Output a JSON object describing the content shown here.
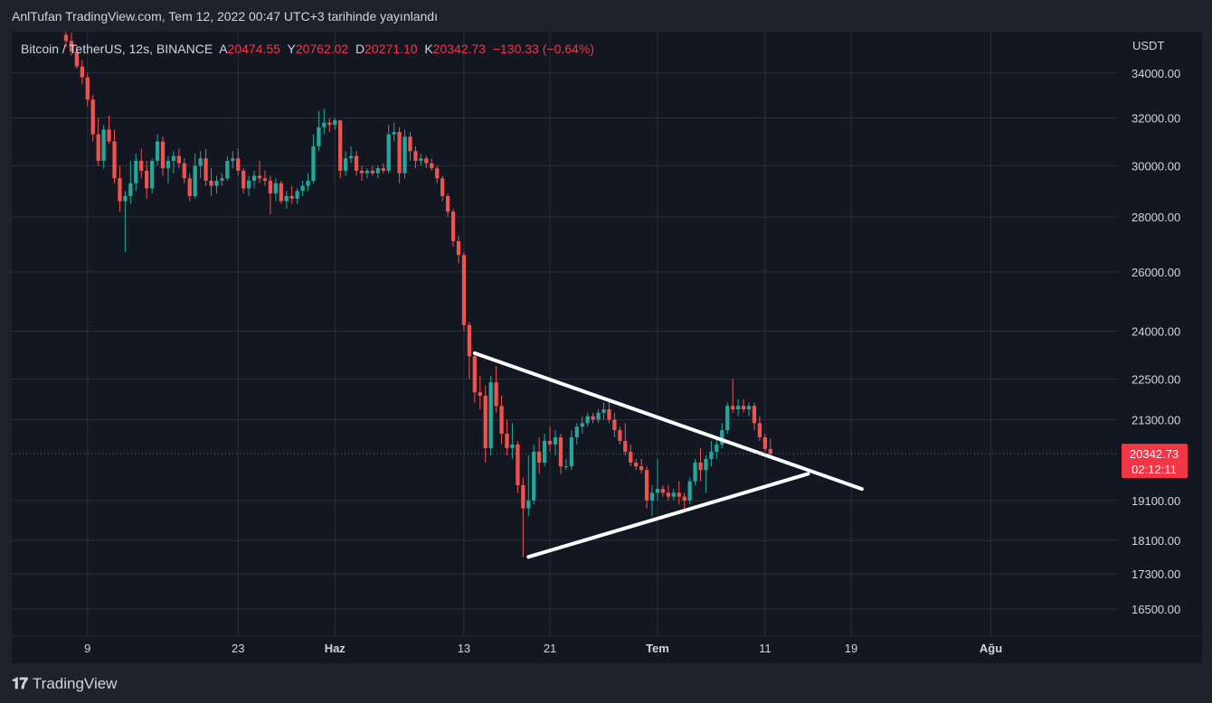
{
  "header": {
    "text": "AnlTufan TradingView.com, Tem 12, 2022 00:47 UTC+3 tarihinde yayınlandı"
  },
  "legend": {
    "symbol": "Bitcoin / TetherUS, 12s, BINANCE",
    "open_label": "A",
    "open": "20474.55",
    "high_label": "Y",
    "high": "20762.02",
    "low_label": "D",
    "low": "20271.10",
    "close_label": "K",
    "close": "20342.73",
    "change": "−130.33 (−0.64%)"
  },
  "footer": {
    "brand": "TradingView"
  },
  "colors": {
    "up": "#26a69a",
    "down": "#ef5350",
    "bg": "#131722",
    "grid": "#2a2e39",
    "text": "#d1d4dc",
    "price_tag": "#f23645"
  },
  "chart_data": {
    "type": "candlestick",
    "interval": "12h",
    "currency": "USDT",
    "log_scale": true,
    "grid": true,
    "y_ticks": [
      "34000.00",
      "32000.00",
      "30000.00",
      "28000.00",
      "26000.00",
      "24000.00",
      "22500.00",
      "21300.00",
      "19100.00",
      "18100.00",
      "17300.00",
      "16500.00"
    ],
    "x_ticks": [
      {
        "label": "9",
        "date": "2022-05-09"
      },
      {
        "label": "23",
        "date": "2022-05-23"
      },
      {
        "label": "Haz",
        "date": "2022-06-01"
      },
      {
        "label": "13",
        "date": "2022-06-13"
      },
      {
        "label": "21",
        "date": "2022-06-21"
      },
      {
        "label": "Tem",
        "date": "2022-07-01"
      },
      {
        "label": "11",
        "date": "2022-07-11"
      },
      {
        "label": "19",
        "date": "2022-07-19"
      },
      {
        "label": "Ağu",
        "date": "2022-08-01"
      }
    ],
    "x_range": [
      "2022-05-07",
      "2022-08-06"
    ],
    "y_range": [
      16200,
      35300
    ],
    "last_price": {
      "value": "20342.73",
      "countdown": "02:12:11"
    },
    "trendlines": [
      {
        "from": {
          "date": "2022-06-14",
          "price": 23300
        },
        "to": {
          "date": "2022-07-20",
          "price": 19400
        }
      },
      {
        "from": {
          "date": "2022-06-19",
          "price": 17700
        },
        "to": {
          "date": "2022-07-15",
          "price": 19800
        }
      }
    ],
    "candles": [
      {
        "date": "2022-05-07",
        "o": 35800,
        "h": 36100,
        "l": 35200,
        "c": 35500
      },
      {
        "date": "2022-05-07 12:00",
        "o": 35500,
        "h": 35900,
        "l": 34800,
        "c": 35000
      },
      {
        "date": "2022-05-08",
        "o": 35000,
        "h": 35300,
        "l": 34200,
        "c": 34300
      },
      {
        "date": "2022-05-08 12:00",
        "o": 34300,
        "h": 34600,
        "l": 33500,
        "c": 33800
      },
      {
        "date": "2022-05-09",
        "o": 33800,
        "h": 34000,
        "l": 32500,
        "c": 32800
      },
      {
        "date": "2022-05-09 12:00",
        "o": 32800,
        "h": 33000,
        "l": 31000,
        "c": 31300
      },
      {
        "date": "2022-05-10",
        "o": 31300,
        "h": 32000,
        "l": 30000,
        "c": 30200
      },
      {
        "date": "2022-05-10 12:00",
        "o": 30200,
        "h": 31700,
        "l": 29900,
        "c": 31500
      },
      {
        "date": "2022-05-11",
        "o": 31500,
        "h": 32100,
        "l": 30900,
        "c": 31000
      },
      {
        "date": "2022-05-11 12:00",
        "o": 31000,
        "h": 31500,
        "l": 29300,
        "c": 29500
      },
      {
        "date": "2022-05-12",
        "o": 29500,
        "h": 30000,
        "l": 28200,
        "c": 28600
      },
      {
        "date": "2022-05-12 12:00",
        "o": 28600,
        "h": 29000,
        "l": 26700,
        "c": 28800
      },
      {
        "date": "2022-05-13",
        "o": 28800,
        "h": 30200,
        "l": 28500,
        "c": 29300
      },
      {
        "date": "2022-05-13 12:00",
        "o": 29300,
        "h": 30500,
        "l": 29000,
        "c": 30200
      },
      {
        "date": "2022-05-14",
        "o": 30200,
        "h": 30700,
        "l": 29500,
        "c": 29800
      },
      {
        "date": "2022-05-14 12:00",
        "o": 29800,
        "h": 30200,
        "l": 28700,
        "c": 29100
      },
      {
        "date": "2022-05-15",
        "o": 29100,
        "h": 30300,
        "l": 28900,
        "c": 30200
      },
      {
        "date": "2022-05-15 12:00",
        "o": 30200,
        "h": 31300,
        "l": 30000,
        "c": 31000
      },
      {
        "date": "2022-05-16",
        "o": 31000,
        "h": 31200,
        "l": 29600,
        "c": 29900
      },
      {
        "date": "2022-05-16 12:00",
        "o": 29900,
        "h": 30400,
        "l": 29300,
        "c": 30200
      },
      {
        "date": "2022-05-17",
        "o": 30200,
        "h": 30600,
        "l": 29700,
        "c": 30400
      },
      {
        "date": "2022-05-17 12:00",
        "o": 30400,
        "h": 30700,
        "l": 29900,
        "c": 30100
      },
      {
        "date": "2022-05-18",
        "o": 30100,
        "h": 30300,
        "l": 29300,
        "c": 29500
      },
      {
        "date": "2022-05-18 12:00",
        "o": 29500,
        "h": 29700,
        "l": 28600,
        "c": 28800
      },
      {
        "date": "2022-05-19",
        "o": 28800,
        "h": 30500,
        "l": 28700,
        "c": 30000
      },
      {
        "date": "2022-05-19 12:00",
        "o": 30000,
        "h": 30600,
        "l": 29500,
        "c": 30300
      },
      {
        "date": "2022-05-20",
        "o": 30300,
        "h": 30700,
        "l": 29200,
        "c": 29400
      },
      {
        "date": "2022-05-20 12:00",
        "o": 29400,
        "h": 29900,
        "l": 28800,
        "c": 29200
      },
      {
        "date": "2022-05-21",
        "o": 29200,
        "h": 29600,
        "l": 28900,
        "c": 29400
      },
      {
        "date": "2022-05-21 12:00",
        "o": 29400,
        "h": 29700,
        "l": 29200,
        "c": 29500
      },
      {
        "date": "2022-05-22",
        "o": 29500,
        "h": 30400,
        "l": 29400,
        "c": 30200
      },
      {
        "date": "2022-05-22 12:00",
        "o": 30200,
        "h": 30600,
        "l": 29900,
        "c": 30300
      },
      {
        "date": "2022-05-23",
        "o": 30300,
        "h": 30700,
        "l": 29600,
        "c": 29800
      },
      {
        "date": "2022-05-23 12:00",
        "o": 29800,
        "h": 29900,
        "l": 28900,
        "c": 29100
      },
      {
        "date": "2022-05-24",
        "o": 29100,
        "h": 29600,
        "l": 28800,
        "c": 29400
      },
      {
        "date": "2022-05-24 12:00",
        "o": 29400,
        "h": 29800,
        "l": 29100,
        "c": 29600
      },
      {
        "date": "2022-05-25",
        "o": 29600,
        "h": 30200,
        "l": 29300,
        "c": 29500
      },
      {
        "date": "2022-05-25 12:00",
        "o": 29500,
        "h": 29800,
        "l": 29200,
        "c": 29400
      },
      {
        "date": "2022-05-26",
        "o": 29400,
        "h": 29600,
        "l": 28100,
        "c": 28900
      },
      {
        "date": "2022-05-26 12:00",
        "o": 28900,
        "h": 29500,
        "l": 28600,
        "c": 29300
      },
      {
        "date": "2022-05-27",
        "o": 29300,
        "h": 29400,
        "l": 28500,
        "c": 28600
      },
      {
        "date": "2022-05-27 12:00",
        "o": 28600,
        "h": 29000,
        "l": 28300,
        "c": 28800
      },
      {
        "date": "2022-05-28",
        "o": 28800,
        "h": 29200,
        "l": 28500,
        "c": 28700
      },
      {
        "date": "2022-05-28 12:00",
        "o": 28700,
        "h": 29100,
        "l": 28500,
        "c": 29000
      },
      {
        "date": "2022-05-29",
        "o": 29000,
        "h": 29400,
        "l": 28800,
        "c": 29200
      },
      {
        "date": "2022-05-29 12:00",
        "o": 29200,
        "h": 29700,
        "l": 29000,
        "c": 29400
      },
      {
        "date": "2022-05-30",
        "o": 29400,
        "h": 31300,
        "l": 29300,
        "c": 30800
      },
      {
        "date": "2022-05-30 12:00",
        "o": 30800,
        "h": 32300,
        "l": 30600,
        "c": 31600
      },
      {
        "date": "2022-05-31",
        "o": 31600,
        "h": 32400,
        "l": 31300,
        "c": 31800
      },
      {
        "date": "2022-05-31 12:00",
        "o": 31800,
        "h": 32000,
        "l": 31400,
        "c": 31700
      },
      {
        "date": "2022-06-01",
        "o": 31700,
        "h": 32000,
        "l": 31500,
        "c": 31900
      },
      {
        "date": "2022-06-01 12:00",
        "o": 31900,
        "h": 31900,
        "l": 29500,
        "c": 29800
      },
      {
        "date": "2022-06-02",
        "o": 29800,
        "h": 30600,
        "l": 29600,
        "c": 30300
      },
      {
        "date": "2022-06-02 12:00",
        "o": 30300,
        "h": 30800,
        "l": 30100,
        "c": 30400
      },
      {
        "date": "2022-06-03",
        "o": 30400,
        "h": 30600,
        "l": 29600,
        "c": 29800
      },
      {
        "date": "2022-06-03 12:00",
        "o": 29800,
        "h": 30000,
        "l": 29400,
        "c": 29700
      },
      {
        "date": "2022-06-04",
        "o": 29700,
        "h": 29900,
        "l": 29500,
        "c": 29800
      },
      {
        "date": "2022-06-04 12:00",
        "o": 29800,
        "h": 30000,
        "l": 29600,
        "c": 29700
      },
      {
        "date": "2022-06-05",
        "o": 29700,
        "h": 30000,
        "l": 29500,
        "c": 29900
      },
      {
        "date": "2022-06-05 12:00",
        "o": 29900,
        "h": 30100,
        "l": 29700,
        "c": 29800
      },
      {
        "date": "2022-06-06",
        "o": 29800,
        "h": 31700,
        "l": 29700,
        "c": 31300
      },
      {
        "date": "2022-06-06 12:00",
        "o": 31300,
        "h": 31800,
        "l": 31000,
        "c": 31400
      },
      {
        "date": "2022-06-07",
        "o": 31400,
        "h": 31600,
        "l": 29300,
        "c": 29700
      },
      {
        "date": "2022-06-07 12:00",
        "o": 29700,
        "h": 31500,
        "l": 29500,
        "c": 31200
      },
      {
        "date": "2022-06-08",
        "o": 31200,
        "h": 31400,
        "l": 30200,
        "c": 30600
      },
      {
        "date": "2022-06-08 12:00",
        "o": 30600,
        "h": 30800,
        "l": 29900,
        "c": 30200
      },
      {
        "date": "2022-06-09",
        "o": 30200,
        "h": 30500,
        "l": 30000,
        "c": 30300
      },
      {
        "date": "2022-06-09 12:00",
        "o": 30300,
        "h": 30400,
        "l": 29900,
        "c": 30100
      },
      {
        "date": "2022-06-10",
        "o": 30100,
        "h": 30300,
        "l": 29800,
        "c": 29900
      },
      {
        "date": "2022-06-10 12:00",
        "o": 29900,
        "h": 30000,
        "l": 29300,
        "c": 29500
      },
      {
        "date": "2022-06-11",
        "o": 29500,
        "h": 29600,
        "l": 28600,
        "c": 28800
      },
      {
        "date": "2022-06-11 12:00",
        "o": 28800,
        "h": 28900,
        "l": 28000,
        "c": 28200
      },
      {
        "date": "2022-06-12",
        "o": 28200,
        "h": 28300,
        "l": 26900,
        "c": 27100
      },
      {
        "date": "2022-06-12 12:00",
        "o": 27100,
        "h": 27300,
        "l": 26300,
        "c": 26600
      },
      {
        "date": "2022-06-13",
        "o": 26600,
        "h": 26700,
        "l": 24000,
        "c": 24200
      },
      {
        "date": "2022-06-13 12:00",
        "o": 24200,
        "h": 24300,
        "l": 22500,
        "c": 23200
      },
      {
        "date": "2022-06-14",
        "o": 23200,
        "h": 23300,
        "l": 21800,
        "c": 22100
      },
      {
        "date": "2022-06-14 12:00",
        "o": 22100,
        "h": 22600,
        "l": 21600,
        "c": 22000
      },
      {
        "date": "2022-06-15",
        "o": 22000,
        "h": 22300,
        "l": 20100,
        "c": 20500
      },
      {
        "date": "2022-06-15 12:00",
        "o": 20500,
        "h": 22600,
        "l": 20300,
        "c": 22400
      },
      {
        "date": "2022-06-16",
        "o": 22400,
        "h": 22900,
        "l": 21500,
        "c": 21700
      },
      {
        "date": "2022-06-16 12:00",
        "o": 21700,
        "h": 22000,
        "l": 20600,
        "c": 20900
      },
      {
        "date": "2022-06-17",
        "o": 20900,
        "h": 21300,
        "l": 20300,
        "c": 20500
      },
      {
        "date": "2022-06-17 12:00",
        "o": 20500,
        "h": 21200,
        "l": 20200,
        "c": 20600
      },
      {
        "date": "2022-06-18",
        "o": 20600,
        "h": 20700,
        "l": 19300,
        "c": 19500
      },
      {
        "date": "2022-06-18 12:00",
        "o": 19500,
        "h": 19700,
        "l": 17700,
        "c": 18900
      },
      {
        "date": "2022-06-19",
        "o": 18900,
        "h": 20300,
        "l": 18700,
        "c": 19100
      },
      {
        "date": "2022-06-19 12:00",
        "o": 19100,
        "h": 20600,
        "l": 19000,
        "c": 20400
      },
      {
        "date": "2022-06-20",
        "o": 20400,
        "h": 20800,
        "l": 19800,
        "c": 20100
      },
      {
        "date": "2022-06-20 12:00",
        "o": 20100,
        "h": 20900,
        "l": 20000,
        "c": 20700
      },
      {
        "date": "2022-06-21",
        "o": 20700,
        "h": 21100,
        "l": 20400,
        "c": 20600
      },
      {
        "date": "2022-06-21 12:00",
        "o": 20600,
        "h": 21000,
        "l": 20300,
        "c": 20800
      },
      {
        "date": "2022-06-22",
        "o": 20800,
        "h": 20900,
        "l": 19800,
        "c": 20000
      },
      {
        "date": "2022-06-22 12:00",
        "o": 20000,
        "h": 20200,
        "l": 19900,
        "c": 20000
      },
      {
        "date": "2022-06-23",
        "o": 20000,
        "h": 21000,
        "l": 19900,
        "c": 20800
      },
      {
        "date": "2022-06-23 12:00",
        "o": 20800,
        "h": 21200,
        "l": 20600,
        "c": 21100
      },
      {
        "date": "2022-06-24",
        "o": 21100,
        "h": 21400,
        "l": 20900,
        "c": 21200
      },
      {
        "date": "2022-06-24 12:00",
        "o": 21200,
        "h": 21500,
        "l": 21100,
        "c": 21400
      },
      {
        "date": "2022-06-25",
        "o": 21400,
        "h": 21500,
        "l": 21200,
        "c": 21300
      },
      {
        "date": "2022-06-25 12:00",
        "o": 21300,
        "h": 21600,
        "l": 21200,
        "c": 21500
      },
      {
        "date": "2022-06-26",
        "o": 21500,
        "h": 21800,
        "l": 21300,
        "c": 21600
      },
      {
        "date": "2022-06-26 12:00",
        "o": 21600,
        "h": 21900,
        "l": 21200,
        "c": 21300
      },
      {
        "date": "2022-06-27",
        "o": 21300,
        "h": 21500,
        "l": 20800,
        "c": 21000
      },
      {
        "date": "2022-06-27 12:00",
        "o": 21000,
        "h": 21100,
        "l": 20600,
        "c": 20700
      },
      {
        "date": "2022-06-28",
        "o": 20700,
        "h": 21200,
        "l": 20300,
        "c": 20400
      },
      {
        "date": "2022-06-28 12:00",
        "o": 20400,
        "h": 20600,
        "l": 20000,
        "c": 20100
      },
      {
        "date": "2022-06-29",
        "o": 20100,
        "h": 20200,
        "l": 19900,
        "c": 20000
      },
      {
        "date": "2022-06-29 12:00",
        "o": 20000,
        "h": 20200,
        "l": 19800,
        "c": 19900
      },
      {
        "date": "2022-06-30",
        "o": 19900,
        "h": 20000,
        "l": 18900,
        "c": 19100
      },
      {
        "date": "2022-06-30 12:00",
        "o": 19100,
        "h": 19500,
        "l": 18700,
        "c": 19300
      },
      {
        "date": "2022-07-01",
        "o": 19300,
        "h": 20200,
        "l": 19100,
        "c": 19400
      },
      {
        "date": "2022-07-01 12:00",
        "o": 19400,
        "h": 19500,
        "l": 19200,
        "c": 19300
      },
      {
        "date": "2022-07-02",
        "o": 19300,
        "h": 19500,
        "l": 19100,
        "c": 19200
      },
      {
        "date": "2022-07-02 12:00",
        "o": 19200,
        "h": 19400,
        "l": 19100,
        "c": 19300
      },
      {
        "date": "2022-07-03",
        "o": 19300,
        "h": 19600,
        "l": 19000,
        "c": 19200
      },
      {
        "date": "2022-07-03 12:00",
        "o": 19200,
        "h": 19300,
        "l": 18800,
        "c": 19100
      },
      {
        "date": "2022-07-04",
        "o": 19100,
        "h": 19700,
        "l": 19000,
        "c": 19600
      },
      {
        "date": "2022-07-04 12:00",
        "o": 19600,
        "h": 20200,
        "l": 19500,
        "c": 20100
      },
      {
        "date": "2022-07-05",
        "o": 20100,
        "h": 20500,
        "l": 19600,
        "c": 19900
      },
      {
        "date": "2022-07-05 12:00",
        "o": 19900,
        "h": 20300,
        "l": 19300,
        "c": 20200
      },
      {
        "date": "2022-07-06",
        "o": 20200,
        "h": 20700,
        "l": 20000,
        "c": 20400
      },
      {
        "date": "2022-07-06 12:00",
        "o": 20400,
        "h": 20800,
        "l": 20200,
        "c": 20600
      },
      {
        "date": "2022-07-07",
        "o": 20600,
        "h": 21200,
        "l": 20500,
        "c": 21000
      },
      {
        "date": "2022-07-07 12:00",
        "o": 21000,
        "h": 21800,
        "l": 20900,
        "c": 21700
      },
      {
        "date": "2022-07-08",
        "o": 21700,
        "h": 22500,
        "l": 21500,
        "c": 21600
      },
      {
        "date": "2022-07-08 12:00",
        "o": 21600,
        "h": 21900,
        "l": 21400,
        "c": 21700
      },
      {
        "date": "2022-07-09",
        "o": 21700,
        "h": 21900,
        "l": 21500,
        "c": 21600
      },
      {
        "date": "2022-07-09 12:00",
        "o": 21600,
        "h": 21800,
        "l": 21400,
        "c": 21700
      },
      {
        "date": "2022-07-10",
        "o": 21700,
        "h": 21800,
        "l": 21000,
        "c": 21200
      },
      {
        "date": "2022-07-10 12:00",
        "o": 21200,
        "h": 21400,
        "l": 20700,
        "c": 20800
      },
      {
        "date": "2022-07-11",
        "o": 20800,
        "h": 20900,
        "l": 20400,
        "c": 20475
      },
      {
        "date": "2022-07-11 12:00",
        "o": 20474.55,
        "h": 20762.02,
        "l": 20271.1,
        "c": 20342.73
      }
    ]
  }
}
